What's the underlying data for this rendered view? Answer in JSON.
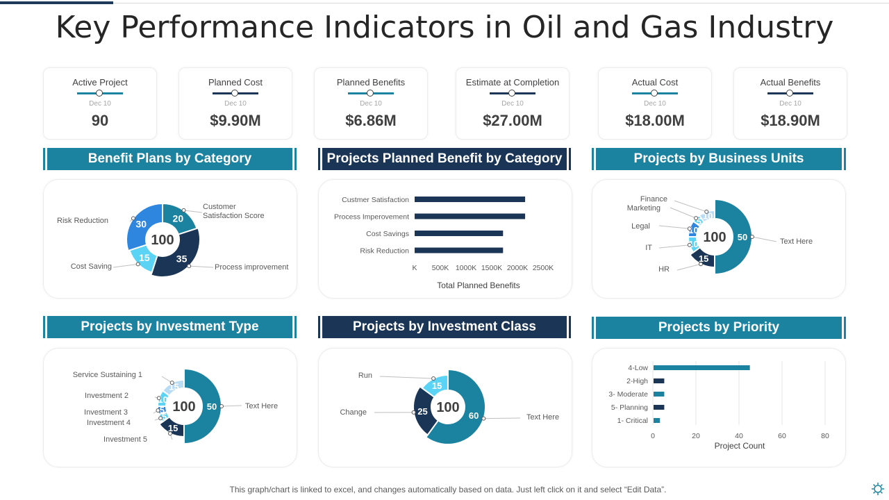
{
  "title": "Key Performance Indicators in Oil and Gas Industry",
  "kpis": [
    {
      "label": "Active Project",
      "date": "Dec 10",
      "value": "90",
      "color": "#1b82a0"
    },
    {
      "label": "Planned Cost",
      "date": "Dec 10",
      "value": "$9.90M",
      "color": "#1b3556"
    },
    {
      "label": "Planned Benefits",
      "date": "Dec 10",
      "value": "$6.86M",
      "color": "#1b82a0"
    },
    {
      "label": "Estimate at Completion",
      "date": "Dec 10",
      "value": "$27.00M",
      "color": "#1b3556"
    },
    {
      "label": "Actual Cost",
      "date": "Dec 10",
      "value": "$18.00M",
      "color": "#1b82a0"
    },
    {
      "label": "Actual Benefits",
      "date": "Dec 10",
      "value": "$18.90M",
      "color": "#1b3556"
    }
  ],
  "headers": {
    "benefit_plans": "Benefit Plans by Category",
    "planned_benefit": "Projects Planned Benefit by Category",
    "business_units": "Projects by Business Units",
    "investment_type": "Projects by Investment Type",
    "investment_class": "Projects by Investment Class",
    "priority": "Projects by Priority"
  },
  "footer": "This graph/chart is linked to excel,  and changes automatically based on data. Just left click on it and select “Edit Data”.",
  "colors": {
    "teal": "#1b82a0",
    "navy": "#1b3556",
    "blue": "#2e86de",
    "light": "#5bd3f5",
    "pale": "#b9dcf5"
  },
  "chart_data": [
    {
      "id": "benefit_plans",
      "type": "pie",
      "center_label": "100",
      "slices": [
        {
          "label": "Customer\nSatisfaction Score",
          "value": 20,
          "color": "#1b82a0"
        },
        {
          "label": "Process improvement",
          "value": 35,
          "color": "#1b3556"
        },
        {
          "label": "Cost Saving",
          "value": 15,
          "color": "#5bd3f5"
        },
        {
          "label": "Risk Reduction",
          "value": 30,
          "color": "#2e86de"
        }
      ]
    },
    {
      "id": "planned_benefit",
      "type": "bar",
      "orientation": "horizontal",
      "categories": [
        "Custmer Satisfaction",
        "Process Imperovement",
        "Cost Savings",
        "Risk Reduction"
      ],
      "values": [
        2500,
        2500,
        2000,
        2000
      ],
      "xticks": [
        "K",
        "500K",
        "1000K",
        "1500K",
        "2000K",
        "2500K"
      ],
      "xlim": [
        0,
        2500
      ],
      "xlabel": "Total Planned Benefits",
      "color": "#1b3556"
    },
    {
      "id": "business_units",
      "type": "pie",
      "center_label": "100",
      "slices": [
        {
          "label": "Text Here",
          "value": 50,
          "color": "#1b82a0"
        },
        {
          "label": "HR",
          "value": 15,
          "color": "#1b3556"
        },
        {
          "label": "IT",
          "value": 10,
          "color": "#5bd3f5"
        },
        {
          "label": "Legal",
          "value": 10,
          "color": "#2e86de"
        },
        {
          "label": "Marketing",
          "value": 5,
          "color": "#5bd3f5"
        },
        {
          "label": "Finance",
          "value": 10,
          "color": "#b9dcf5"
        }
      ]
    },
    {
      "id": "investment_type",
      "type": "pie",
      "center_label": "100",
      "slices": [
        {
          "label": "Text Here",
          "value": 50,
          "color": "#1b82a0"
        },
        {
          "label": "Investment 5",
          "value": 15,
          "color": "#1b3556"
        },
        {
          "label": "Investment 4",
          "value": 5,
          "color": "#5bd3f5"
        },
        {
          "label": "Investment 3",
          "value": 5,
          "color": "#2e86de"
        },
        {
          "label": "Investment 2",
          "value": 10,
          "color": "#5bd3f5"
        },
        {
          "label": "Service Sustaining 1",
          "value": 15,
          "color": "#b9dcf5"
        }
      ]
    },
    {
      "id": "investment_class",
      "type": "pie",
      "center_label": "100",
      "slices": [
        {
          "label": "Text Here",
          "value": 60,
          "color": "#1b82a0"
        },
        {
          "label": "Change",
          "value": 25,
          "color": "#1b3556"
        },
        {
          "label": "Run",
          "value": 15,
          "color": "#5bd3f5"
        }
      ]
    },
    {
      "id": "priority",
      "type": "bar",
      "orientation": "horizontal",
      "categories": [
        "4-Low",
        "2-High",
        "3- Moderate",
        "5- Planning",
        "1- Critical"
      ],
      "values": [
        45,
        5,
        5,
        5,
        3
      ],
      "colors": [
        "#1b82a0",
        "#1b3556",
        "#1b82a0",
        "#1b3556",
        "#1b82a0"
      ],
      "xticks": [
        "0",
        "20",
        "40",
        "60",
        "80"
      ],
      "xlim": [
        0,
        80
      ],
      "xlabel": "Project Count",
      "grid": true
    }
  ]
}
